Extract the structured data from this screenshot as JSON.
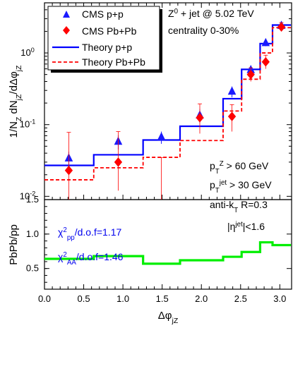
{
  "colors": {
    "cms_pp": "#1a1aff",
    "cms_pbpb": "#ff0000",
    "theory_pp": "#0000ff",
    "theory_pbpb": "#ff0000",
    "ratio": "#00ee00",
    "chi_text": "#0000ee"
  },
  "chart_data": [
    {
      "type": "line",
      "panel": "top",
      "title": "",
      "ylabel": "1/N_Z dN_jZ/dΔφ_jZ",
      "xlim": [
        0,
        3.15
      ],
      "ylim": [
        0.009,
        5
      ],
      "yscale": "log",
      "y_ticks": [
        "10-2",
        "10-1",
        "100"
      ],
      "legend": {
        "placement": "top-left",
        "entries": [
          "CMS p+p",
          "CMS Pb+Pb",
          "Theory p+p",
          "Theory Pb+Pb"
        ]
      },
      "annotations": {
        "process": "Z0 + jet @ 5.02 TeV",
        "centrality": "centrality 0-30%",
        "cut_ptz": "pTZ > 60 GeV",
        "cut_ptjet": "pTjet > 30 GeV",
        "algorithm": "anti-kT R=0.3",
        "eta_cut": "|ηjet|<1.6"
      },
      "bin_edges": [
        0,
        0.628,
        1.257,
        1.728,
        2.277,
        2.513,
        2.749,
        2.907,
        3.142
      ],
      "series": [
        {
          "name": "CMS p+p",
          "marker": "triangle",
          "x": [
            0.31,
            0.94,
            1.49,
            1.98,
            2.39,
            2.63,
            2.82,
            3.02
          ],
          "y": [
            0.034,
            0.058,
            0.067,
            0.135,
            0.29,
            0.58,
            1.38,
            2.4
          ],
          "err": [
            0.008,
            0.013,
            0.013,
            0.03,
            0.05,
            0.08,
            0.14,
            0.25
          ]
        },
        {
          "name": "CMS Pb+Pb",
          "marker": "diamond",
          "x": [
            0.31,
            0.94,
            1.49,
            1.98,
            2.39,
            2.63,
            2.82,
            3.02
          ],
          "y": [
            0.023,
            0.03,
            0.0048,
            0.125,
            0.13,
            0.5,
            0.75,
            2.3
          ],
          "err_low": [
            0.02,
            0.018,
            0.0045,
            0.05,
            0.05,
            0.1,
            0.15,
            0.3
          ],
          "err_high": [
            0.055,
            0.05,
            0.03,
            0.07,
            0.06,
            0.12,
            0.18,
            0.35
          ]
        },
        {
          "name": "Theory p+p",
          "type": "step",
          "y": [
            0.027,
            0.038,
            0.061,
            0.095,
            0.23,
            0.59,
            1.35,
            2.45
          ]
        },
        {
          "name": "Theory Pb+Pb",
          "type": "step",
          "y": [
            0.017,
            0.025,
            0.035,
            0.06,
            0.155,
            0.43,
            1.0,
            2.25
          ]
        }
      ]
    },
    {
      "type": "line",
      "panel": "bottom",
      "title": "",
      "xlabel": "Δφ_jZ",
      "ylabel": "PbPb/pp",
      "xlim": [
        0,
        3.15
      ],
      "ylim": [
        0.2,
        1.5
      ],
      "x_ticks": [
        "0.0",
        "0.5",
        "1.0",
        "1.5",
        "2.0",
        "2.5",
        "3.0"
      ],
      "y_ticks": [
        "0.5",
        "1.0",
        "1.5"
      ],
      "annotations": {
        "chi_pp": "χ2pp/d.o.f=1.17",
        "chi_aa": "χ2AA/d.o.f=1.46"
      },
      "bin_edges": [
        0,
        0.628,
        1.257,
        1.728,
        2.277,
        2.513,
        2.749,
        2.907,
        3.142
      ],
      "series": [
        {
          "type": "step",
          "y": [
            0.64,
            0.68,
            0.57,
            0.62,
            0.67,
            0.74,
            0.88,
            0.84
          ]
        }
      ]
    }
  ]
}
